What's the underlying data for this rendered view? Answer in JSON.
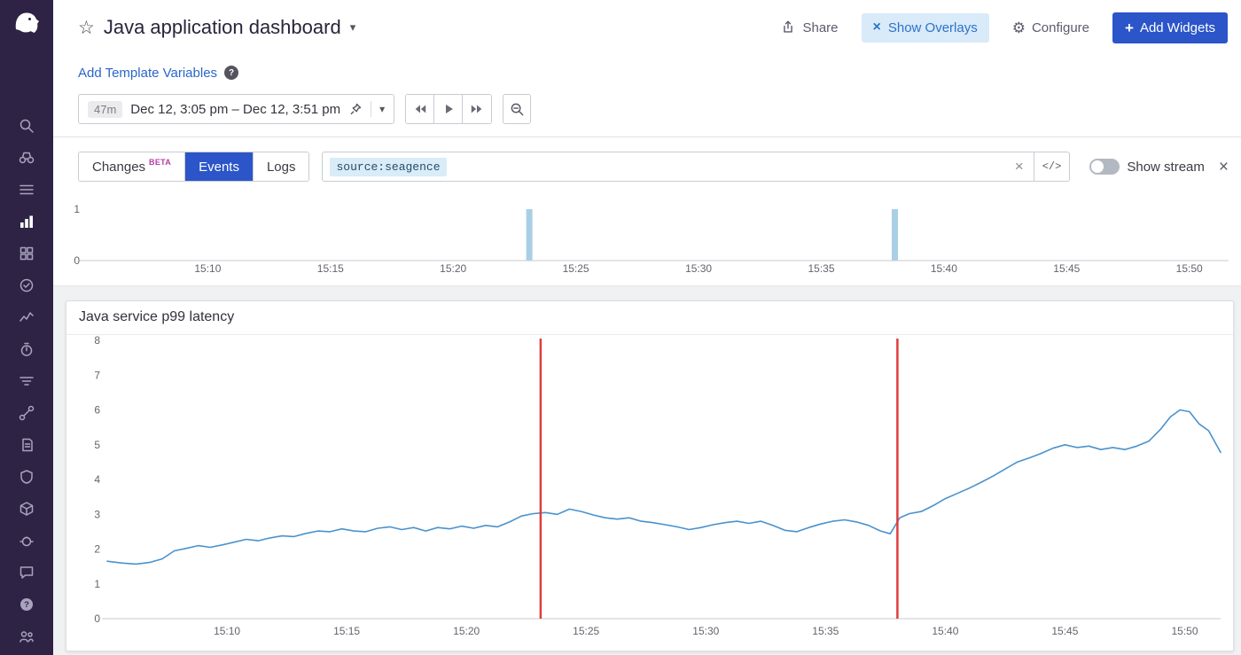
{
  "colors": {
    "sidebar_bg": "#2e2344",
    "accent_blue": "#2b55c9",
    "link_blue": "#2a66c9",
    "overlay_chip_bg": "#d9eaf9",
    "overlay_chip_text": "#2e73c8",
    "beta_badge": "#b53da6",
    "line_blue": "#4a92cc",
    "event_marker_red": "#e03c3c",
    "event_bar_blue": "#a9cfe6"
  },
  "sidebar": {
    "items": [
      {
        "name": "search-icon"
      },
      {
        "name": "watchdog-icon"
      },
      {
        "name": "events-icon"
      },
      {
        "name": "dashboards-icon",
        "active": true
      },
      {
        "name": "infrastructure-icon"
      },
      {
        "name": "monitors-icon"
      },
      {
        "name": "metrics-icon"
      },
      {
        "name": "apm-icon"
      },
      {
        "name": "notebooks-icon"
      },
      {
        "name": "synthetics-icon"
      },
      {
        "name": "logs-icon"
      },
      {
        "name": "security-icon"
      },
      {
        "name": "ci-icon"
      },
      {
        "name": "rum-icon"
      },
      {
        "name": "feedback-icon"
      },
      {
        "name": "help-icon"
      },
      {
        "name": "organization-icon"
      }
    ]
  },
  "header": {
    "title": "Java application dashboard",
    "share_label": "Share",
    "show_overlays_label": "Show Overlays",
    "configure_label": "Configure",
    "add_widgets_label": "Add Widgets",
    "template_variables_label": "Add Template Variables"
  },
  "time_controls": {
    "duration_badge": "47m",
    "range_text": "Dec 12, 3:05 pm – Dec 12, 3:51 pm"
  },
  "events_bar": {
    "tab_changes": "Changes",
    "tab_changes_badge": "BETA",
    "tab_events": "Events",
    "tab_logs": "Logs",
    "search_token": "source:seagence",
    "code_button": "</>",
    "show_stream_label": "Show stream"
  },
  "widget": {
    "title": "Java service p99 latency"
  },
  "chart_data": [
    {
      "id": "events-overlay",
      "type": "bar",
      "title": "",
      "x_domain": [
        5,
        51.6
      ],
      "x_tick_minutes": [
        10,
        15,
        20,
        25,
        30,
        35,
        40,
        45,
        50
      ],
      "x_ticks": [
        "15:10",
        "15:15",
        "15:20",
        "15:25",
        "15:30",
        "15:35",
        "15:40",
        "15:45",
        "15:50"
      ],
      "ylim": [
        0,
        1
      ],
      "y_ticks": [
        0,
        1
      ],
      "bars": [
        {
          "x": 23.1,
          "height": 1
        },
        {
          "x": 38.0,
          "height": 1
        }
      ],
      "bar_color": "#a9cfe6"
    },
    {
      "id": "latency",
      "type": "line",
      "title": "Java service p99 latency",
      "x_domain": [
        5,
        51.5
      ],
      "x_tick_minutes": [
        10,
        15,
        20,
        25,
        30,
        35,
        40,
        45,
        50
      ],
      "x_ticks": [
        "15:10",
        "15:15",
        "15:20",
        "15:25",
        "15:30",
        "15:35",
        "15:40",
        "15:45",
        "15:50"
      ],
      "ylim": [
        0,
        8
      ],
      "y_ticks": [
        0,
        1,
        2,
        3,
        4,
        5,
        6,
        7,
        8
      ],
      "event_markers": {
        "color": "#e03c3c",
        "x": [
          23.1,
          38.0
        ]
      },
      "series": [
        {
          "name": "p99 latency",
          "color": "#4a92cc",
          "points": [
            [
              5,
              1.65
            ],
            [
              5.6,
              1.6
            ],
            [
              6.2,
              1.57
            ],
            [
              6.8,
              1.62
            ],
            [
              7.3,
              1.72
            ],
            [
              7.8,
              1.95
            ],
            [
              8.3,
              2.02
            ],
            [
              8.8,
              2.1
            ],
            [
              9.3,
              2.05
            ],
            [
              9.8,
              2.12
            ],
            [
              10.3,
              2.2
            ],
            [
              10.8,
              2.28
            ],
            [
              11.3,
              2.24
            ],
            [
              11.8,
              2.32
            ],
            [
              12.3,
              2.38
            ],
            [
              12.8,
              2.36
            ],
            [
              13.3,
              2.45
            ],
            [
              13.8,
              2.52
            ],
            [
              14.3,
              2.5
            ],
            [
              14.8,
              2.58
            ],
            [
              15.3,
              2.52
            ],
            [
              15.8,
              2.5
            ],
            [
              16.3,
              2.6
            ],
            [
              16.8,
              2.64
            ],
            [
              17.3,
              2.56
            ],
            [
              17.8,
              2.62
            ],
            [
              18.3,
              2.52
            ],
            [
              18.8,
              2.62
            ],
            [
              19.3,
              2.58
            ],
            [
              19.8,
              2.66
            ],
            [
              20.3,
              2.6
            ],
            [
              20.8,
              2.68
            ],
            [
              21.3,
              2.64
            ],
            [
              21.8,
              2.78
            ],
            [
              22.3,
              2.95
            ],
            [
              22.8,
              3.02
            ],
            [
              23.3,
              3.05
            ],
            [
              23.8,
              3.0
            ],
            [
              24.3,
              3.15
            ],
            [
              24.8,
              3.08
            ],
            [
              25.3,
              2.98
            ],
            [
              25.8,
              2.9
            ],
            [
              26.3,
              2.86
            ],
            [
              26.8,
              2.9
            ],
            [
              27.3,
              2.8
            ],
            [
              27.8,
              2.76
            ],
            [
              28.3,
              2.7
            ],
            [
              28.8,
              2.64
            ],
            [
              29.3,
              2.56
            ],
            [
              29.8,
              2.62
            ],
            [
              30.3,
              2.7
            ],
            [
              30.8,
              2.76
            ],
            [
              31.3,
              2.8
            ],
            [
              31.8,
              2.74
            ],
            [
              32.3,
              2.8
            ],
            [
              32.8,
              2.68
            ],
            [
              33.3,
              2.54
            ],
            [
              33.8,
              2.5
            ],
            [
              34.3,
              2.62
            ],
            [
              34.8,
              2.72
            ],
            [
              35.3,
              2.8
            ],
            [
              35.8,
              2.84
            ],
            [
              36.3,
              2.78
            ],
            [
              36.8,
              2.68
            ],
            [
              37.3,
              2.52
            ],
            [
              37.7,
              2.44
            ],
            [
              38.1,
              2.9
            ],
            [
              38.5,
              3.02
            ],
            [
              39,
              3.08
            ],
            [
              39.5,
              3.25
            ],
            [
              40,
              3.45
            ],
            [
              40.5,
              3.6
            ],
            [
              41,
              3.75
            ],
            [
              41.5,
              3.92
            ],
            [
              42,
              4.1
            ],
            [
              42.5,
              4.3
            ],
            [
              43,
              4.5
            ],
            [
              43.5,
              4.62
            ],
            [
              44,
              4.75
            ],
            [
              44.5,
              4.9
            ],
            [
              45,
              5.0
            ],
            [
              45.5,
              4.92
            ],
            [
              46,
              4.96
            ],
            [
              46.5,
              4.86
            ],
            [
              47,
              4.92
            ],
            [
              47.5,
              4.86
            ],
            [
              48,
              4.96
            ],
            [
              48.5,
              5.1
            ],
            [
              49,
              5.45
            ],
            [
              49.4,
              5.8
            ],
            [
              49.8,
              6.0
            ],
            [
              50.2,
              5.95
            ],
            [
              50.6,
              5.6
            ],
            [
              51,
              5.4
            ],
            [
              51.5,
              4.78
            ]
          ]
        }
      ]
    }
  ]
}
